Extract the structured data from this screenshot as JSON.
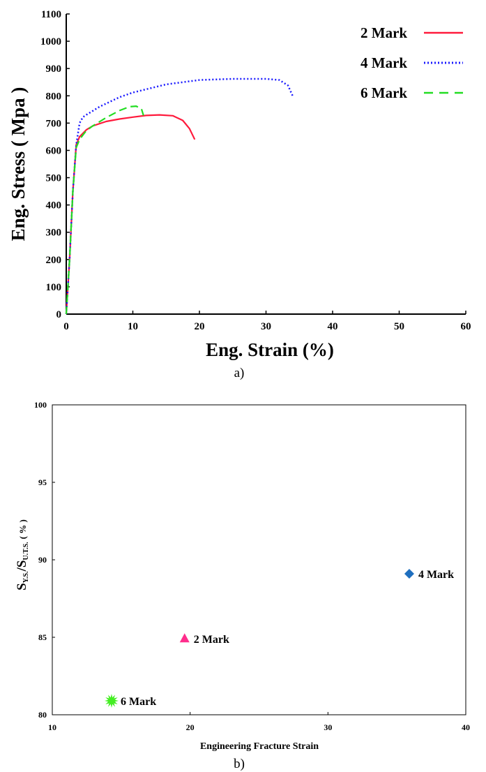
{
  "chart_data": [
    {
      "type": "line",
      "panel_label": "a)",
      "xlabel": "Eng. Strain (%)",
      "ylabel": "Eng. Stress ( Mpa )",
      "xlim": [
        0,
        60
      ],
      "ylim": [
        0,
        1100
      ],
      "xticks": [
        0,
        10,
        20,
        30,
        40,
        50,
        60
      ],
      "yticks": [
        0,
        100,
        200,
        300,
        400,
        500,
        600,
        700,
        800,
        900,
        1000,
        1100
      ],
      "grid": false,
      "legend_position": "top-right",
      "series": [
        {
          "name": "2 Mark",
          "color": "#ff1a3c",
          "line_style": "solid",
          "x": [
            0,
            0.5,
            1.0,
            1.5,
            2,
            3,
            4,
            6,
            8,
            10,
            12,
            14,
            16,
            17.5,
            18.5,
            19.3
          ],
          "y": [
            0,
            200,
            450,
            620,
            650,
            675,
            690,
            706,
            715,
            722,
            728,
            730,
            727,
            710,
            680,
            640
          ]
        },
        {
          "name": "4 Mark",
          "color": "#1a1aff",
          "line_style": "dotted",
          "x": [
            0,
            0.5,
            1.0,
            1.5,
            2,
            2.5,
            3,
            5,
            8,
            10,
            15,
            20,
            25,
            30,
            32,
            33.3,
            34
          ],
          "y": [
            0,
            200,
            450,
            620,
            700,
            722,
            730,
            760,
            795,
            812,
            842,
            858,
            862,
            862,
            858,
            838,
            800
          ]
        },
        {
          "name": "6 Mark",
          "color": "#22dd22",
          "line_style": "dashed",
          "x": [
            0,
            0.5,
            1.0,
            1.5,
            2,
            3,
            4,
            6,
            8,
            9.5,
            10.5,
            11.3,
            11.6
          ],
          "y": [
            0,
            200,
            450,
            610,
            640,
            672,
            690,
            720,
            746,
            760,
            762,
            752,
            728
          ]
        }
      ]
    },
    {
      "type": "scatter",
      "panel_label": "b)",
      "xlabel": "Engineering Fracture Strain",
      "ylabel": "SY.S./SU.T.S.(%)",
      "ylabel_parts": [
        "S",
        "Y.S.",
        "/S",
        "U.T.S.",
        "( % )"
      ],
      "xlim": [
        10,
        40
      ],
      "ylim": [
        80,
        100
      ],
      "xticks": [
        10,
        20,
        30,
        40
      ],
      "yticks": [
        80,
        85,
        90,
        95,
        100
      ],
      "grid": false,
      "series": [
        {
          "name": "2 Mark",
          "marker": "triangle",
          "color": "#ff2d8c",
          "x": 19.6,
          "y": 84.9
        },
        {
          "name": "4 Mark",
          "marker": "diamond",
          "color": "#1f6fbf",
          "x": 35.9,
          "y": 89.1
        },
        {
          "name": "6 Mark",
          "marker": "star",
          "color": "#44ee22",
          "x": 14.3,
          "y": 80.9
        }
      ]
    }
  ]
}
